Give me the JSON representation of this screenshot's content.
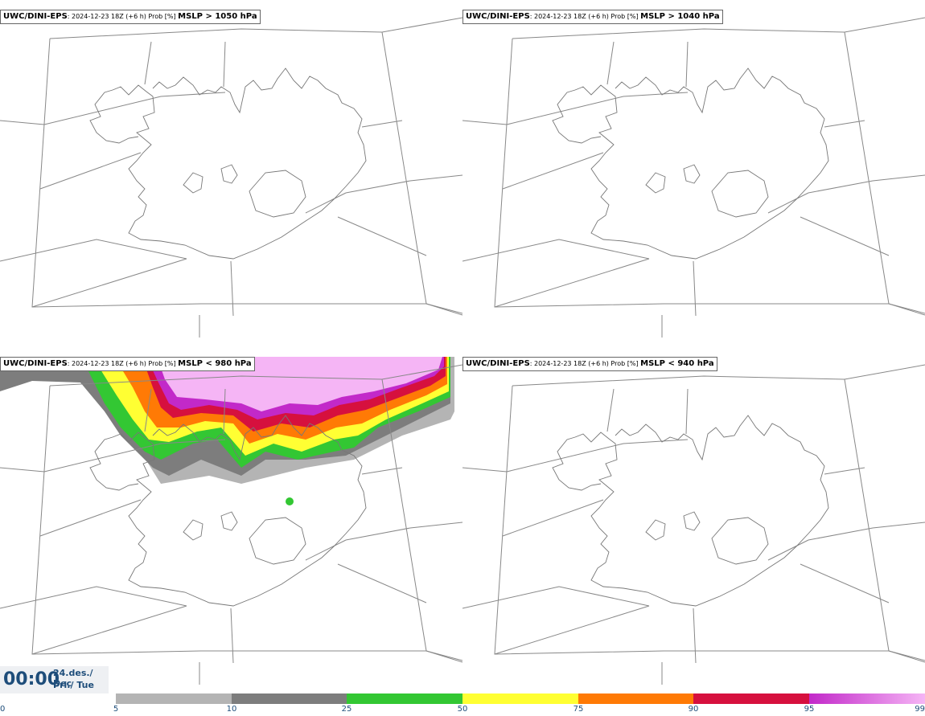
{
  "panels": [
    {
      "model": "UWC/DINI-EPS",
      "meta": ": 2024-12-23 18Z (+6 h) Prob [%]",
      "field": "MSLP > 1050 hPa"
    },
    {
      "model": "UWC/DINI-EPS",
      "meta": ": 2024-12-23 18Z (+6 h) Prob [%]",
      "field": "MSLP > 1040 hPa"
    },
    {
      "model": "UWC/DINI-EPS",
      "meta": ": 2024-12-23 18Z (+6 h) Prob [%]",
      "field": "MSLP < 980 hPa"
    },
    {
      "model": "UWC/DINI-EPS",
      "meta": ": 2024-12-23 18Z (+6 h) Prob [%]",
      "field": "MSLP < 940 hPa"
    }
  ],
  "time": {
    "clock": "00:00",
    "date_line1": "24.des./ Dec",
    "date_line2": "Þri./ Tue"
  },
  "colorbar": {
    "labels": [
      "0",
      "5",
      "10",
      "25",
      "50",
      "75",
      "90",
      "95",
      "99"
    ],
    "colors": [
      "#ffffff",
      "#b4b4b4",
      "#7d7d7d",
      "#33c733",
      "#ffff33",
      "#ff7a05",
      "#d6103e",
      "#c229c9",
      "#f5b5f5"
    ]
  }
}
